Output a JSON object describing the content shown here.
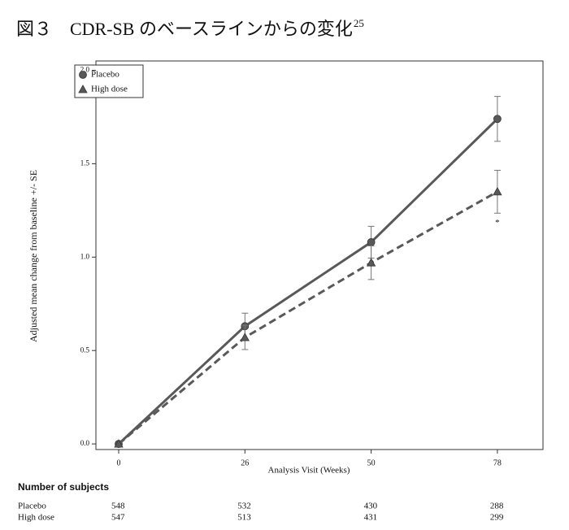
{
  "chart_data": {
    "type": "line",
    "title": "図３　CDR-SB のベースラインからの変化",
    "title_superscript": "25",
    "x_label": "Analysis Visit (Weeks)",
    "y_label": "Adjusted mean change from baseline +/- SE",
    "categories": [
      "0",
      "26",
      "50",
      "78"
    ],
    "series": [
      {
        "name": "Placebo",
        "color": "#595959",
        "marker": "circle",
        "dash": false,
        "values": [
          0,
          0.63,
          1.08,
          1.74
        ],
        "errors": [
          0,
          0.07,
          0.085,
          0.12
        ]
      },
      {
        "name": "High dose",
        "color": "#595959",
        "marker": "triangle",
        "dash": true,
        "values": [
          0,
          0.57,
          0.97,
          1.35
        ],
        "errors": [
          0,
          0.065,
          0.09,
          0.115
        ]
      }
    ],
    "annotations": [
      {
        "series": 1,
        "index": 3,
        "text": "*"
      }
    ],
    "ylim": [
      -0.03,
      2.05
    ],
    "yticks": [
      {
        "value": 0,
        "label": "0.0"
      },
      {
        "value": 0.5,
        "label": "0.5"
      },
      {
        "value": 1,
        "label": "1.0"
      },
      {
        "value": 1.5,
        "label": "1.5"
      },
      {
        "value": 2,
        "label": "2.0"
      }
    ],
    "legend": "top-left",
    "subjects_table": {
      "title": "Number of subjects",
      "rows": [
        {
          "name": "Placebo",
          "values": [
            "548",
            "532",
            "430",
            "288"
          ]
        },
        {
          "name": "High dose",
          "values": [
            "547",
            "513",
            "431",
            "299"
          ]
        }
      ]
    }
  }
}
